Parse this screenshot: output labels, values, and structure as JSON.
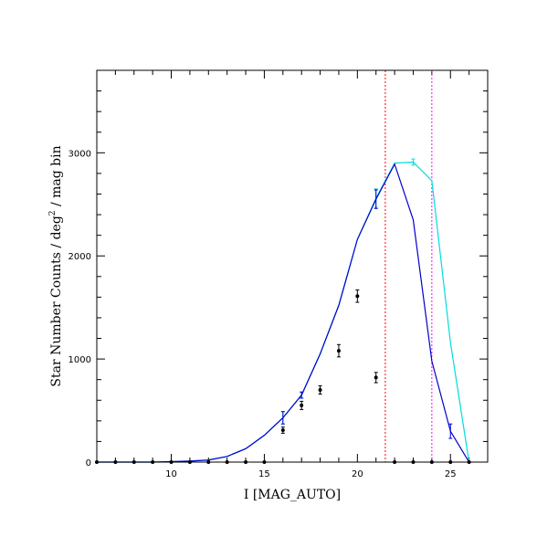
{
  "chart_data": {
    "type": "line",
    "xlabel": "I [MAG_AUTO]",
    "ylabel_main": "Star Number Counts / deg",
    "ylabel_sup": "2",
    "ylabel_tail": " / mag bin",
    "xlim": [
      6,
      27
    ],
    "ylim": [
      0,
      3800
    ],
    "x_ticks": [
      10,
      15,
      20,
      25
    ],
    "y_ticks": [
      0,
      1000,
      2000,
      3000
    ],
    "x_minor_step": 1,
    "y_minor_step": 200,
    "vlines": [
      {
        "x": 21.5,
        "color": "#ff0000"
      },
      {
        "x": 24.0,
        "color": "#ff00ff"
      }
    ],
    "series": [
      {
        "color": "#00dddd",
        "style": "line",
        "x": [
          6,
          7,
          8,
          9,
          10,
          11,
          12,
          13,
          14,
          15,
          16,
          17,
          18,
          19,
          20,
          21,
          22,
          23,
          24,
          25,
          26
        ],
        "y": [
          0,
          0,
          0,
          0,
          5,
          10,
          20,
          55,
          130,
          260,
          430,
          650,
          1050,
          1520,
          2160,
          2560,
          2900,
          2910,
          2730,
          1160,
          0
        ],
        "err": [
          0,
          0,
          0,
          0,
          0,
          0,
          0,
          0,
          0,
          0,
          60,
          30,
          0,
          0,
          0,
          90,
          0,
          30,
          0,
          0,
          0
        ]
      },
      {
        "color": "#0000cc",
        "style": "line",
        "x": [
          6,
          7,
          8,
          9,
          10,
          11,
          12,
          13,
          14,
          15,
          16,
          17,
          18,
          19,
          20,
          21,
          22,
          23,
          24,
          25,
          26
        ],
        "y": [
          0,
          0,
          0,
          0,
          5,
          10,
          20,
          55,
          130,
          260,
          430,
          650,
          1050,
          1520,
          2160,
          2550,
          2890,
          2350,
          980,
          300,
          0
        ],
        "err": [
          0,
          0,
          0,
          0,
          0,
          0,
          0,
          0,
          0,
          0,
          60,
          30,
          0,
          0,
          0,
          90,
          0,
          0,
          0,
          70,
          0
        ]
      },
      {
        "color": "#000000",
        "style": "points",
        "x": [
          6,
          7,
          8,
          9,
          10,
          11,
          12,
          13,
          14,
          15,
          16,
          17,
          18,
          19,
          20,
          21,
          22,
          23,
          24,
          25,
          26
        ],
        "y": [
          0,
          0,
          0,
          0,
          0,
          0,
          0,
          0,
          0,
          0,
          310,
          550,
          700,
          1080,
          1610,
          820,
          0,
          0,
          0,
          0,
          0
        ],
        "err": [
          0,
          0,
          0,
          0,
          0,
          0,
          0,
          0,
          0,
          0,
          30,
          40,
          40,
          60,
          60,
          50,
          0,
          0,
          0,
          0,
          0
        ]
      }
    ]
  }
}
